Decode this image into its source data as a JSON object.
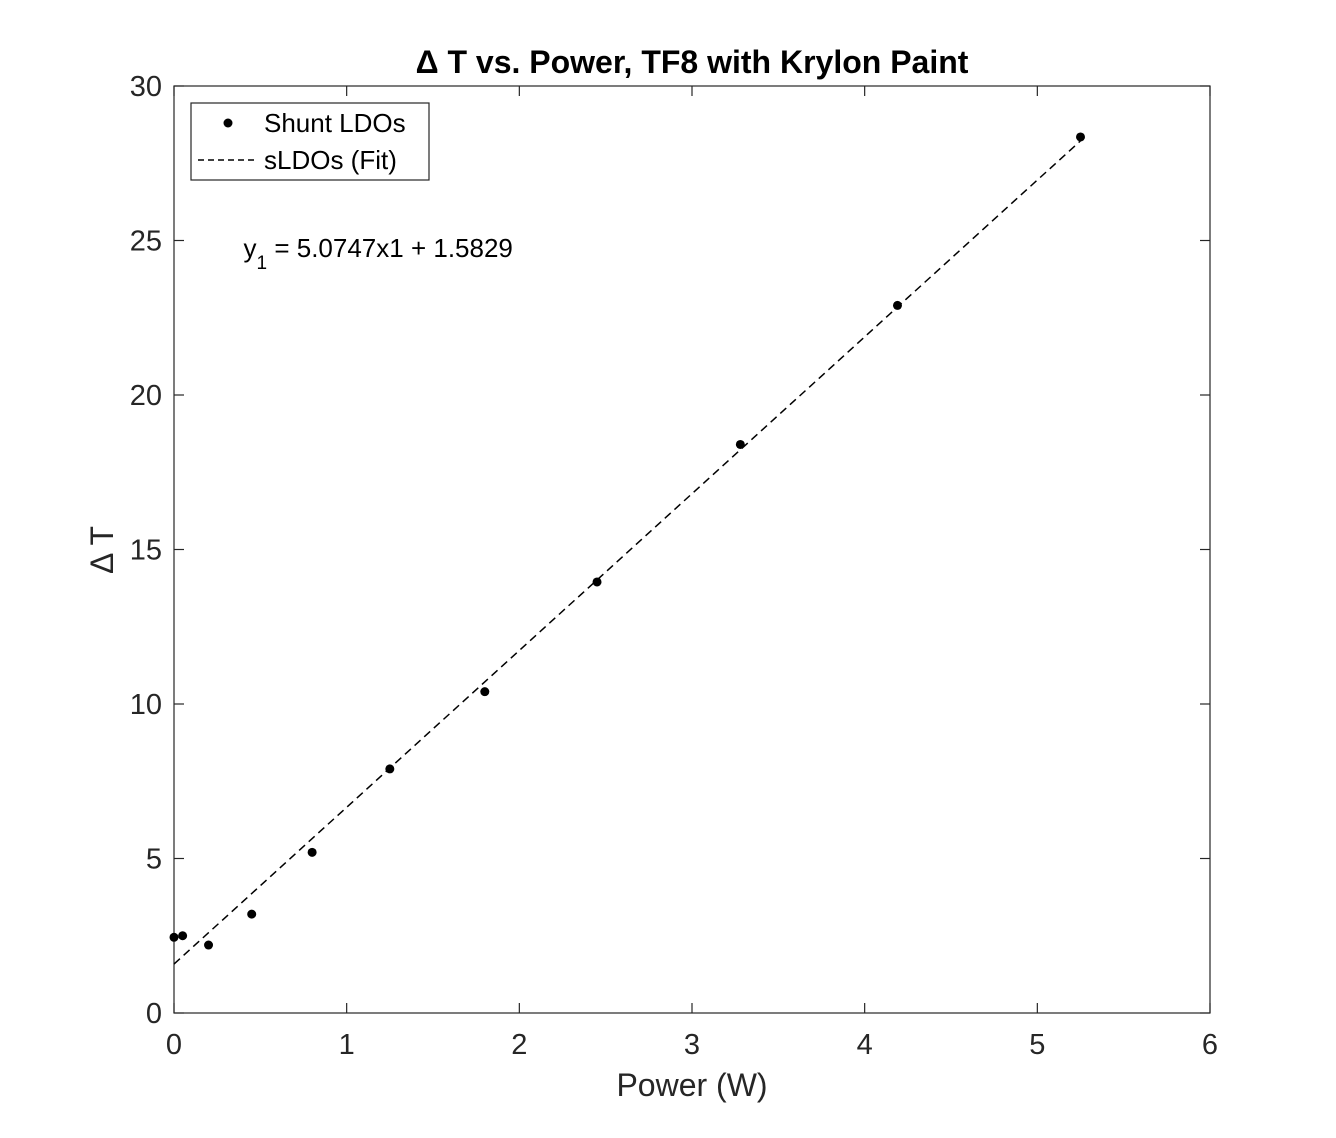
{
  "chart_data": {
    "type": "scatter",
    "title": "Δ T vs. Power, TF8 with Krylon Paint",
    "xlabel": "Power (W)",
    "ylabel": "Δ T",
    "xlim": [
      0,
      6
    ],
    "ylim": [
      0,
      30
    ],
    "xticks": [
      0,
      1,
      2,
      3,
      4,
      5,
      6
    ],
    "yticks": [
      0,
      5,
      10,
      15,
      20,
      25,
      30
    ],
    "grid": false,
    "legend_position": "top-left",
    "series": [
      {
        "name": "Shunt LDOs",
        "kind": "scatter",
        "marker": "dot",
        "color": "#000000",
        "x": [
          0.0,
          0.05,
          0.2,
          0.45,
          0.8,
          1.25,
          1.8,
          2.45,
          3.28,
          4.19,
          5.25
        ],
        "y": [
          2.45,
          2.5,
          2.2,
          3.2,
          5.2,
          7.9,
          10.4,
          13.95,
          18.4,
          22.9,
          28.35
        ]
      },
      {
        "name": "sLDOs (Fit)",
        "kind": "line",
        "style": "dashed",
        "color": "#000000",
        "x": [
          0.0,
          5.25
        ],
        "y": [
          1.5829,
          28.2251
        ]
      }
    ],
    "annotations": [
      {
        "text_main": "y",
        "text_sub": "1",
        "text_rest": " = 5.0747x1 + 1.5829",
        "x": 0.2,
        "y": 24.3
      }
    ]
  }
}
